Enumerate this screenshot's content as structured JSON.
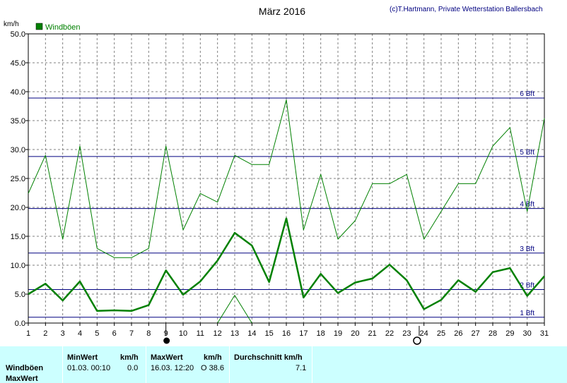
{
  "header": {
    "title": "März 2016",
    "credit": "(c)T.Hartmann, Private Wetterstation Ballersbach",
    "unit": "km/h"
  },
  "legend": {
    "label": "Windböen",
    "color": "#008000"
  },
  "chart_data": {
    "type": "line",
    "title": "März 2016",
    "ylabel": "km/h",
    "ylim": [
      0,
      50
    ],
    "xlim": [
      1,
      31
    ],
    "grid": true,
    "y_ticks": [
      "0.0",
      "5.0",
      "10.0",
      "15.0",
      "20.0",
      "25.0",
      "30.0",
      "35.0",
      "40.0",
      "45.0",
      "50.0"
    ],
    "x": [
      1,
      2,
      3,
      4,
      5,
      6,
      7,
      8,
      9,
      10,
      11,
      12,
      13,
      14,
      15,
      16,
      17,
      18,
      19,
      20,
      21,
      22,
      23,
      24,
      25,
      26,
      27,
      28,
      29,
      30,
      31
    ],
    "series": [
      {
        "name": "Windböen",
        "color": "#008000",
        "width": 2.5,
        "values": [
          5.0,
          6.8,
          3.9,
          7.2,
          2.1,
          2.2,
          2.1,
          3.1,
          9.1,
          4.9,
          7.2,
          10.8,
          15.6,
          13.4,
          7.1,
          18.1,
          4.4,
          8.5,
          5.2,
          7.0,
          7.7,
          10.1,
          7.4,
          2.4,
          4.0,
          7.4,
          5.4,
          8.8,
          9.5,
          4.7,
          8.1
        ]
      },
      {
        "name": "MaxWert",
        "color": "#008000",
        "width": 1,
        "values": [
          22.4,
          29.0,
          14.5,
          30.6,
          12.9,
          11.3,
          11.3,
          12.9,
          30.6,
          16.1,
          22.4,
          20.9,
          29.0,
          27.4,
          27.4,
          38.6,
          16.1,
          25.7,
          14.5,
          17.7,
          24.1,
          24.1,
          25.7,
          14.5,
          19.3,
          24.1,
          24.1,
          30.6,
          33.8,
          19.3,
          35.4
        ]
      },
      {
        "name": "segment",
        "color": "#008000",
        "width": 1,
        "x": [
          12,
          13,
          14
        ],
        "values": [
          0,
          4.8,
          0
        ]
      }
    ],
    "beaufort": [
      {
        "label": "1 Bft",
        "value": 1.0
      },
      {
        "label": "2 Bft",
        "value": 5.8
      },
      {
        "label": "3 Bft",
        "value": 12.1
      },
      {
        "label": "4 Bft",
        "value": 19.8
      },
      {
        "label": "5 Bft",
        "value": 28.8
      },
      {
        "label": "6 Bft",
        "value": 38.9
      }
    ],
    "moon": {
      "new_day": 9,
      "full_day": 23.6
    }
  },
  "stats": {
    "row_label_1": "Windböen",
    "row_label_2": "MaxWert",
    "min_header": "MinWert",
    "min_unit": "km/h",
    "min_datetime": "01.03.  00:10",
    "min_value": "0.0",
    "max_header": "MaxWert",
    "max_unit": "km/h",
    "max_datetime": "16.03.  12:20",
    "max_value": "O 38.6",
    "avg_header": "Durchschnitt km/h",
    "avg_value": "7.1"
  }
}
